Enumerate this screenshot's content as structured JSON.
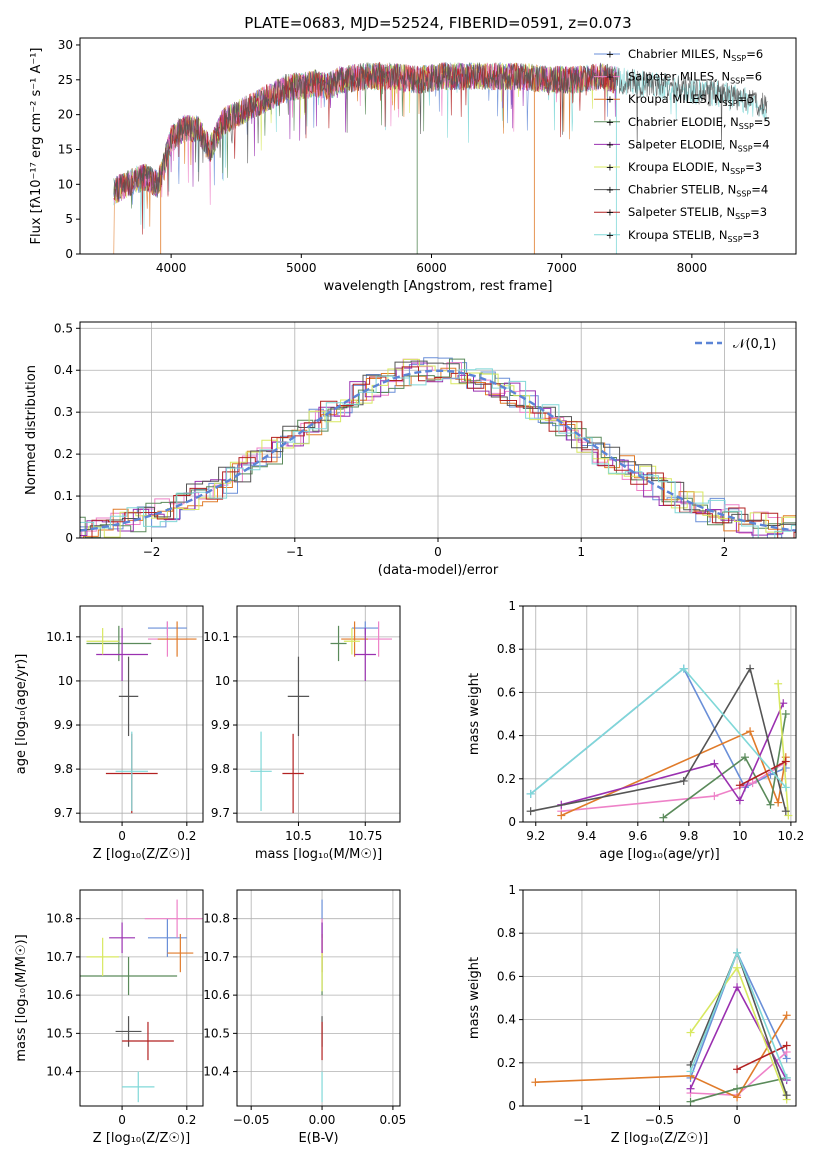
{
  "figure": {
    "title": "PLATE=0683, MJD=52524, FIBERID=0591, z=0.073"
  },
  "models": [
    {
      "id": "chabrier_miles",
      "label": "Chabrier MILES, N",
      "sub": "SSP",
      "suffix": "=6",
      "color": "#6a8fd8"
    },
    {
      "id": "salpeter_miles",
      "label": "Salpeter MILES, N",
      "sub": "SSP",
      "suffix": "=6",
      "color": "#ee82c8"
    },
    {
      "id": "kroupa_miles",
      "label": "Kroupa MILES, N",
      "sub": "SSP",
      "suffix": "=5",
      "color": "#e07b2a"
    },
    {
      "id": "chabrier_elodie",
      "label": "Chabrier ELODIE, N",
      "sub": "SSP",
      "suffix": "=5",
      "color": "#5a8a5a"
    },
    {
      "id": "salpeter_elodie",
      "label": "Salpeter ELODIE, N",
      "sub": "SSP",
      "suffix": "=4",
      "color": "#9a30b0"
    },
    {
      "id": "kroupa_elodie",
      "label": "Kroupa ELODIE, N",
      "sub": "SSP",
      "suffix": "=3",
      "color": "#d8e860"
    },
    {
      "id": "chabrier_stelib",
      "label": "Chabrier STELIB, N",
      "sub": "SSP",
      "suffix": "=4",
      "color": "#555555"
    },
    {
      "id": "salpeter_stelib",
      "label": "Salpeter STELIB, N",
      "sub": "SSP",
      "suffix": "=3",
      "color": "#b22222"
    },
    {
      "id": "kroupa_stelib",
      "label": "Kroupa STELIB, N",
      "sub": "SSP",
      "suffix": "=3",
      "color": "#80d8d8"
    }
  ],
  "chart_data": [
    {
      "id": "spectrum",
      "type": "line",
      "title": "PLATE=0683, MJD=52524, FIBERID=0591, z=0.073",
      "xlabel": "wavelength [Angstrom, rest frame]",
      "ylabel": "Flux [fλ10⁻¹⁷ erg cm⁻² s⁻¹ A⁻¹]",
      "xlim": [
        3300,
        8800
      ],
      "ylim": [
        0,
        31
      ],
      "xticks": [
        4000,
        5000,
        6000,
        7000,
        8000
      ],
      "yticks": [
        0,
        5,
        10,
        15,
        20,
        25,
        30
      ],
      "grid": false,
      "legend": "upper-right",
      "continuum": [
        [
          3560,
          9
        ],
        [
          3700,
          10.5
        ],
        [
          3800,
          11
        ],
        [
          3900,
          10
        ],
        [
          4000,
          16.5
        ],
        [
          4100,
          18
        ],
        [
          4200,
          18
        ],
        [
          4300,
          15
        ],
        [
          4400,
          19
        ],
        [
          4500,
          20
        ],
        [
          4600,
          21
        ],
        [
          4700,
          22
        ],
        [
          4800,
          23
        ],
        [
          4900,
          24
        ],
        [
          5000,
          24
        ],
        [
          5100,
          24.5
        ],
        [
          5200,
          24
        ],
        [
          5300,
          25
        ],
        [
          5500,
          25.5
        ],
        [
          5700,
          25.5
        ],
        [
          5900,
          25
        ],
        [
          6100,
          25.5
        ],
        [
          6300,
          25.5
        ],
        [
          6500,
          25.5
        ],
        [
          6700,
          25.5
        ],
        [
          6900,
          25
        ],
        [
          7100,
          25
        ],
        [
          7300,
          25.5
        ],
        [
          7400,
          25
        ],
        [
          7600,
          24.5
        ],
        [
          7800,
          24
        ],
        [
          8000,
          23.5
        ],
        [
          8200,
          23
        ],
        [
          8400,
          22
        ],
        [
          8600,
          21
        ]
      ]
    },
    {
      "id": "residuals",
      "type": "step",
      "xlabel": "(data-model)/error",
      "ylabel": "Normed distribution",
      "xlim": [
        -2.5,
        2.5
      ],
      "ylim": [
        0,
        0.515
      ],
      "xticks": [
        -2,
        -1,
        0,
        1,
        2
      ],
      "yticks": [
        0,
        0.1,
        0.2,
        0.3,
        0.4,
        0.5
      ],
      "grid": true,
      "legend": "upper-right",
      "reference": {
        "label": "𝒩(0,1)",
        "mean": 0,
        "sigma": 1
      }
    },
    {
      "id": "age_vs_z",
      "type": "scatter",
      "xlabel": "Z [log₁₀(Z/Z☉)]",
      "ylabel": "age  [log₁₀(age/yr)]",
      "xlim": [
        -0.13,
        0.25
      ],
      "ylim": [
        9.68,
        10.17
      ],
      "xticks": [
        0,
        0.2
      ],
      "yticks": [
        9.7,
        9.8,
        9.9,
        10.0,
        10.1
      ],
      "grid": true,
      "points": [
        {
          "x": 0.14,
          "y": 10.12,
          "xerr": 0.06,
          "yerr": 0.015
        },
        {
          "x": 0.14,
          "y": 10.095,
          "xerr": 0.06,
          "yerr": 0.04
        },
        {
          "x": 0.17,
          "y": 10.095,
          "xerr": 0.06,
          "yerr": 0.04
        },
        {
          "x": -0.01,
          "y": 10.085,
          "xerr": 0.1,
          "yerr": 0.04
        },
        {
          "x": 0.0,
          "y": 10.06,
          "xerr": 0.08,
          "yerr": 0.06
        },
        {
          "x": -0.06,
          "y": 10.09,
          "xerr": 0.05,
          "yerr": 0.03
        },
        {
          "x": 0.02,
          "y": 9.965,
          "xerr": 0.03,
          "yerr": 0.09
        },
        {
          "x": 0.03,
          "y": 9.79,
          "xerr": 0.08,
          "yerr": 0.09
        },
        {
          "x": 0.03,
          "y": 9.795,
          "xerr": 0.05,
          "yerr": 0.09
        }
      ]
    },
    {
      "id": "age_vs_mass",
      "type": "scatter",
      "xlabel": "mass [log₁₀(M/M☉)]",
      "ylabel": "",
      "xlim": [
        10.27,
        10.88
      ],
      "ylim": [
        9.68,
        10.17
      ],
      "xticks": [
        10.5,
        10.75
      ],
      "yticks": [
        9.7,
        9.8,
        9.9,
        10.0,
        10.1
      ],
      "grid": true,
      "points": [
        {
          "x": 10.75,
          "y": 10.12,
          "xerr": 0.05,
          "yerr": 0.015
        },
        {
          "x": 10.8,
          "y": 10.095,
          "xerr": 0.05,
          "yerr": 0.04
        },
        {
          "x": 10.71,
          "y": 10.095,
          "xerr": 0.05,
          "yerr": 0.04
        },
        {
          "x": 10.65,
          "y": 10.085,
          "xerr": 0.03,
          "yerr": 0.04
        },
        {
          "x": 10.75,
          "y": 10.06,
          "xerr": 0.04,
          "yerr": 0.06
        },
        {
          "x": 10.7,
          "y": 10.09,
          "xerr": 0.03,
          "yerr": 0.03
        },
        {
          "x": 10.5,
          "y": 9.965,
          "xerr": 0.04,
          "yerr": 0.09
        },
        {
          "x": 10.48,
          "y": 9.79,
          "xerr": 0.04,
          "yerr": 0.09
        },
        {
          "x": 10.36,
          "y": 9.795,
          "xerr": 0.04,
          "yerr": 0.09
        }
      ]
    },
    {
      "id": "weight_vs_age",
      "type": "line",
      "xlabel": "age  [log₁₀(age/yr)]",
      "ylabel": "mass weight",
      "xlim": [
        9.15,
        10.22
      ],
      "ylim": [
        0,
        1
      ],
      "xticks": [
        9.2,
        9.4,
        9.6,
        9.8,
        10.0,
        10.2
      ],
      "yticks": [
        0,
        0.2,
        0.4,
        0.6,
        0.8,
        1.0
      ],
      "grid": true,
      "series": [
        {
          "x": [
            9.18,
            9.78,
            10.02,
            10.12,
            10.18
          ],
          "y": [
            0.13,
            0.71,
            0.16,
            0.22,
            0.25
          ]
        },
        {
          "x": [
            9.3,
            9.9,
            10.05,
            10.17
          ],
          "y": [
            0.05,
            0.12,
            0.18,
            0.27
          ]
        },
        {
          "x": [
            9.3,
            10.04,
            10.15,
            10.18
          ],
          "y": [
            0.03,
            0.42,
            0.09,
            0.3
          ]
        },
        {
          "x": [
            9.7,
            10.02,
            10.12,
            10.18
          ],
          "y": [
            0.02,
            0.3,
            0.08,
            0.5
          ]
        },
        {
          "x": [
            9.3,
            9.9,
            10.0,
            10.17
          ],
          "y": [
            0.08,
            0.27,
            0.1,
            0.55
          ]
        },
        {
          "x": [
            10.15,
            10.19
          ],
          "y": [
            0.64,
            0.03
          ]
        },
        {
          "x": [
            9.18,
            9.78,
            10.04,
            10.18
          ],
          "y": [
            0.05,
            0.19,
            0.71,
            0.05
          ]
        },
        {
          "x": [
            10.0,
            10.18
          ],
          "y": [
            0.17,
            0.28
          ]
        },
        {
          "x": [
            9.18,
            9.78,
            10.18
          ],
          "y": [
            0.13,
            0.71,
            0.16
          ]
        }
      ]
    },
    {
      "id": "mass_vs_z",
      "type": "scatter",
      "xlabel": "Z [log₁₀(Z/Z☉)]",
      "ylabel": "mass [log₁₀(M/M☉)]",
      "xlim": [
        -0.13,
        0.25
      ],
      "ylim": [
        10.31,
        10.875
      ],
      "xticks": [
        0,
        0.2
      ],
      "yticks": [
        10.4,
        10.5,
        10.6,
        10.7,
        10.8
      ],
      "grid": true,
      "points": [
        {
          "x": 0.14,
          "y": 10.75,
          "xerr": 0.06,
          "yerr": 0.05
        },
        {
          "x": 0.17,
          "y": 10.8,
          "xerr": 0.1,
          "yerr": 0.05
        },
        {
          "x": 0.18,
          "y": 10.71,
          "xerr": 0.04,
          "yerr": 0.05
        },
        {
          "x": 0.02,
          "y": 10.65,
          "xerr": 0.15,
          "yerr": 0.05
        },
        {
          "x": 0.0,
          "y": 10.75,
          "xerr": 0.04,
          "yerr": 0.04
        },
        {
          "x": -0.06,
          "y": 10.7,
          "xerr": 0.05,
          "yerr": 0.05
        },
        {
          "x": 0.02,
          "y": 10.505,
          "xerr": 0.04,
          "yerr": 0.04
        },
        {
          "x": 0.08,
          "y": 10.48,
          "xerr": 0.08,
          "yerr": 0.05
        },
        {
          "x": 0.05,
          "y": 10.36,
          "xerr": 0.05,
          "yerr": 0.04
        }
      ]
    },
    {
      "id": "mass_vs_ebv",
      "type": "scatter",
      "xlabel": "E(B-V)",
      "ylabel": "",
      "xlim": [
        -0.06,
        0.055
      ],
      "ylim": [
        10.31,
        10.875
      ],
      "xticks": [
        -0.05,
        0.0,
        0.05
      ],
      "yticks": [
        10.4,
        10.5,
        10.6,
        10.7,
        10.8
      ],
      "grid": true,
      "points": [
        {
          "x": 0,
          "y": 10.8,
          "xerr": 0,
          "yerr": 0.05
        },
        {
          "x": 0,
          "y": 10.75,
          "xerr": 0,
          "yerr": 0.05
        },
        {
          "x": 0,
          "y": 10.71,
          "xerr": 0,
          "yerr": 0.05
        },
        {
          "x": 0,
          "y": 10.65,
          "xerr": 0,
          "yerr": 0.05
        },
        {
          "x": 0,
          "y": 10.75,
          "xerr": 0,
          "yerr": 0.04
        },
        {
          "x": 0,
          "y": 10.66,
          "xerr": 0,
          "yerr": 0.05
        },
        {
          "x": 0,
          "y": 10.505,
          "xerr": 0,
          "yerr": 0.04
        },
        {
          "x": 0,
          "y": 10.48,
          "xerr": 0,
          "yerr": 0.05
        },
        {
          "x": 0,
          "y": 10.36,
          "xerr": 0,
          "yerr": 0.04
        }
      ]
    },
    {
      "id": "weight_vs_z",
      "type": "line",
      "xlabel": "Z [log₁₀(Z/Z☉)]",
      "ylabel": "mass weight",
      "xlim": [
        -1.38,
        0.38
      ],
      "ylim": [
        0,
        1
      ],
      "xticks": [
        -1.0,
        -0.5,
        0.0
      ],
      "yticks": [
        0,
        0.2,
        0.4,
        0.6,
        0.8,
        1.0
      ],
      "grid": true,
      "series": [
        {
          "x": [
            -0.3,
            0.0,
            0.32
          ],
          "y": [
            0.13,
            0.71,
            0.22
          ]
        },
        {
          "x": [
            -0.3,
            0.0,
            0.32
          ],
          "y": [
            0.06,
            0.05,
            0.25
          ]
        },
        {
          "x": [
            -1.3,
            -0.3,
            0.0,
            0.32
          ],
          "y": [
            0.11,
            0.14,
            0.04,
            0.42
          ]
        },
        {
          "x": [
            -0.3,
            0.0,
            0.32
          ],
          "y": [
            0.02,
            0.08,
            0.13
          ]
        },
        {
          "x": [
            -0.3,
            0.0,
            0.32
          ],
          "y": [
            0.08,
            0.55,
            0.12
          ]
        },
        {
          "x": [
            -0.3,
            0.0,
            0.32
          ],
          "y": [
            0.34,
            0.64,
            0.03
          ]
        },
        {
          "x": [
            -0.3,
            0.0,
            0.32
          ],
          "y": [
            0.19,
            0.71,
            0.05
          ]
        },
        {
          "x": [
            0.0,
            0.32
          ],
          "y": [
            0.17,
            0.28
          ]
        },
        {
          "x": [
            -0.3,
            0.0,
            0.32
          ],
          "y": [
            0.16,
            0.71,
            0.13
          ]
        }
      ]
    }
  ]
}
